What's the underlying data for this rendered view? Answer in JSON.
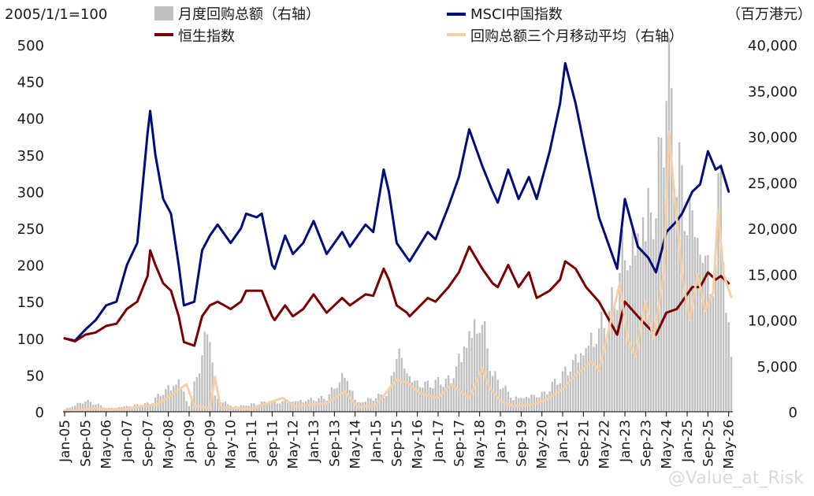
{
  "chart_data": {
    "type": "line",
    "left_axis_label": "2005/1/1=100",
    "right_axis_label": "（百万港元）",
    "left_ylim": [
      0,
      500
    ],
    "left_ticks": [
      "0",
      "50",
      "100",
      "150",
      "200",
      "250",
      "300",
      "350",
      "400",
      "450",
      "500"
    ],
    "right_ylim": [
      0,
      40000
    ],
    "right_ticks": [
      "0",
      "5,000",
      "10,000",
      "15,000",
      "20,000",
      "25,000",
      "30,000",
      "35,000",
      "40,000"
    ],
    "x_ticks": [
      "Jan-05",
      "Sep-05",
      "May-06",
      "Jan-07",
      "Sep-07",
      "May-08",
      "Jan-09",
      "Sep-09",
      "May-10",
      "Jan-11",
      "Sep-11",
      "May-12",
      "Jan-13",
      "Sep-13",
      "May-14",
      "Jan-15",
      "Sep-15",
      "May-16",
      "Jan-17",
      "Sep-17",
      "May-18",
      "Jan-19",
      "Sep-19",
      "May-20",
      "Jan-21",
      "Sep-21",
      "May-22",
      "Jan-23",
      "Sep-23",
      "May-24",
      "Jan-25",
      "Sep-25",
      "May-26"
    ],
    "legend": {
      "bars": "月度回购总额（右轴）",
      "msci": "MSCI中国指数",
      "hsi": "恒生指数",
      "ma": "回购总额三个月移动平均（右轴）"
    },
    "colors": {
      "bars": "#bfbfbf",
      "msci": "#000d7a",
      "hsi": "#7a0000",
      "ma": "#f6cfa6"
    },
    "series": [
      {
        "name": "MSCI中国指数",
        "axis": "left",
        "color": "#000d7a",
        "points": [
          [
            "2005-01",
            100
          ],
          [
            "2005-05",
            97
          ],
          [
            "2005-09",
            112
          ],
          [
            "2006-01",
            125
          ],
          [
            "2006-05",
            145
          ],
          [
            "2006-09",
            150
          ],
          [
            "2007-01",
            200
          ],
          [
            "2007-05",
            230
          ],
          [
            "2007-09",
            380
          ],
          [
            "2007-10",
            410
          ],
          [
            "2007-12",
            350
          ],
          [
            "2008-03",
            290
          ],
          [
            "2008-06",
            270
          ],
          [
            "2008-09",
            200
          ],
          [
            "2008-11",
            145
          ],
          [
            "2009-03",
            150
          ],
          [
            "2009-06",
            220
          ],
          [
            "2009-09",
            240
          ],
          [
            "2009-12",
            255
          ],
          [
            "2010-05",
            230
          ],
          [
            "2010-09",
            250
          ],
          [
            "2010-11",
            270
          ],
          [
            "2011-03",
            265
          ],
          [
            "2011-05",
            270
          ],
          [
            "2011-09",
            200
          ],
          [
            "2011-10",
            195
          ],
          [
            "2012-02",
            240
          ],
          [
            "2012-05",
            215
          ],
          [
            "2012-09",
            230
          ],
          [
            "2013-01",
            260
          ],
          [
            "2013-06",
            215
          ],
          [
            "2013-12",
            245
          ],
          [
            "2014-03",
            225
          ],
          [
            "2014-09",
            255
          ],
          [
            "2014-12",
            245
          ],
          [
            "2015-04",
            330
          ],
          [
            "2015-06",
            300
          ],
          [
            "2015-09",
            230
          ],
          [
            "2016-01",
            210
          ],
          [
            "2016-02",
            205
          ],
          [
            "2016-09",
            245
          ],
          [
            "2016-12",
            235
          ],
          [
            "2017-05",
            280
          ],
          [
            "2017-09",
            320
          ],
          [
            "2018-01",
            385
          ],
          [
            "2018-06",
            335
          ],
          [
            "2018-10",
            300
          ],
          [
            "2018-12",
            285
          ],
          [
            "2019-04",
            330
          ],
          [
            "2019-08",
            290
          ],
          [
            "2019-12",
            320
          ],
          [
            "2020-03",
            290
          ],
          [
            "2020-08",
            355
          ],
          [
            "2020-12",
            420
          ],
          [
            "2021-02",
            475
          ],
          [
            "2021-06",
            420
          ],
          [
            "2021-10",
            350
          ],
          [
            "2022-03",
            265
          ],
          [
            "2022-10",
            195
          ],
          [
            "2023-01",
            290
          ],
          [
            "2023-06",
            225
          ],
          [
            "2023-10",
            210
          ],
          [
            "2024-01",
            190
          ],
          [
            "2024-05",
            245
          ],
          [
            "2024-09",
            260
          ],
          [
            "2024-11",
            270
          ],
          [
            "2025-03",
            300
          ],
          [
            "2025-06",
            310
          ],
          [
            "2025-09",
            355
          ],
          [
            "2025-12",
            330
          ],
          [
            "2026-02",
            335
          ],
          [
            "2026-05",
            300
          ]
        ]
      },
      {
        "name": "恒生指数",
        "axis": "left",
        "color": "#7a0000",
        "points": [
          [
            "2005-01",
            100
          ],
          [
            "2005-05",
            96
          ],
          [
            "2005-09",
            105
          ],
          [
            "2006-01",
            108
          ],
          [
            "2006-05",
            117
          ],
          [
            "2006-09",
            120
          ],
          [
            "2007-01",
            140
          ],
          [
            "2007-05",
            150
          ],
          [
            "2007-09",
            185
          ],
          [
            "2007-10",
            220
          ],
          [
            "2007-12",
            200
          ],
          [
            "2008-03",
            175
          ],
          [
            "2008-06",
            165
          ],
          [
            "2008-09",
            130
          ],
          [
            "2008-11",
            95
          ],
          [
            "2009-03",
            90
          ],
          [
            "2009-06",
            130
          ],
          [
            "2009-09",
            145
          ],
          [
            "2009-12",
            150
          ],
          [
            "2010-05",
            140
          ],
          [
            "2010-09",
            150
          ],
          [
            "2010-11",
            165
          ],
          [
            "2011-03",
            165
          ],
          [
            "2011-05",
            165
          ],
          [
            "2011-09",
            130
          ],
          [
            "2011-10",
            125
          ],
          [
            "2012-02",
            145
          ],
          [
            "2012-05",
            130
          ],
          [
            "2012-09",
            140
          ],
          [
            "2013-01",
            160
          ],
          [
            "2013-06",
            135
          ],
          [
            "2013-12",
            155
          ],
          [
            "2014-03",
            145
          ],
          [
            "2014-09",
            160
          ],
          [
            "2014-12",
            158
          ],
          [
            "2015-04",
            195
          ],
          [
            "2015-06",
            180
          ],
          [
            "2015-09",
            145
          ],
          [
            "2016-01",
            135
          ],
          [
            "2016-02",
            130
          ],
          [
            "2016-09",
            155
          ],
          [
            "2016-12",
            150
          ],
          [
            "2017-05",
            170
          ],
          [
            "2017-09",
            190
          ],
          [
            "2018-01",
            225
          ],
          [
            "2018-06",
            195
          ],
          [
            "2018-10",
            175
          ],
          [
            "2018-12",
            170
          ],
          [
            "2019-04",
            200
          ],
          [
            "2019-08",
            170
          ],
          [
            "2019-12",
            190
          ],
          [
            "2020-03",
            155
          ],
          [
            "2020-08",
            165
          ],
          [
            "2020-12",
            180
          ],
          [
            "2021-02",
            205
          ],
          [
            "2021-06",
            195
          ],
          [
            "2021-10",
            170
          ],
          [
            "2022-03",
            150
          ],
          [
            "2022-10",
            105
          ],
          [
            "2023-01",
            150
          ],
          [
            "2023-06",
            130
          ],
          [
            "2023-10",
            115
          ],
          [
            "2024-01",
            105
          ],
          [
            "2024-05",
            135
          ],
          [
            "2024-09",
            140
          ],
          [
            "2024-11",
            150
          ],
          [
            "2025-03",
            170
          ],
          [
            "2025-06",
            170
          ],
          [
            "2025-09",
            190
          ],
          [
            "2025-12",
            180
          ],
          [
            "2026-02",
            185
          ],
          [
            "2026-05",
            175
          ]
        ]
      },
      {
        "name": "回购总额三个月移动平均（右轴）",
        "axis": "right",
        "color": "#f6cfa6",
        "points": [
          [
            "2005-01",
            0
          ],
          [
            "2006-01",
            400
          ],
          [
            "2006-06",
            200
          ],
          [
            "2007-01",
            300
          ],
          [
            "2007-06",
            600
          ],
          [
            "2008-01",
            800
          ],
          [
            "2008-06",
            1800
          ],
          [
            "2008-12",
            3000
          ],
          [
            "2009-03",
            600
          ],
          [
            "2009-09",
            400
          ],
          [
            "2009-11",
            3800
          ],
          [
            "2010-01",
            500
          ],
          [
            "2011-01",
            300
          ],
          [
            "2012-01",
            1500
          ],
          [
            "2012-06",
            600
          ],
          [
            "2013-01",
            800
          ],
          [
            "2013-06",
            900
          ],
          [
            "2014-01",
            2200
          ],
          [
            "2014-06",
            500
          ],
          [
            "2015-01",
            700
          ],
          [
            "2015-09",
            3500
          ],
          [
            "2016-01",
            3200
          ],
          [
            "2016-06",
            2000
          ],
          [
            "2017-01",
            1500
          ],
          [
            "2017-06",
            3000
          ],
          [
            "2018-01",
            1500
          ],
          [
            "2018-06",
            4700
          ],
          [
            "2018-09",
            2500
          ],
          [
            "2019-01",
            1200
          ],
          [
            "2019-06",
            600
          ],
          [
            "2020-01",
            800
          ],
          [
            "2020-06",
            1200
          ],
          [
            "2021-01",
            2500
          ],
          [
            "2021-06",
            4000
          ],
          [
            "2021-12",
            5500
          ],
          [
            "2022-03",
            4500
          ],
          [
            "2022-06",
            8000
          ],
          [
            "2022-11",
            14000
          ],
          [
            "2023-02",
            8000
          ],
          [
            "2023-05",
            6000
          ],
          [
            "2023-09",
            12000
          ],
          [
            "2023-12",
            8000
          ],
          [
            "2024-04",
            15000
          ],
          [
            "2024-06",
            30500
          ],
          [
            "2024-08",
            24000
          ],
          [
            "2024-11",
            15000
          ],
          [
            "2025-02",
            10000
          ],
          [
            "2025-05",
            15000
          ],
          [
            "2025-08",
            11000
          ],
          [
            "2025-11",
            13000
          ],
          [
            "2026-01",
            22000
          ],
          [
            "2026-03",
            15000
          ],
          [
            "2026-06",
            12500
          ]
        ]
      }
    ],
    "bars_axis": "right",
    "bar_months_start": "2005-01",
    "bar_months_end": "2026-06",
    "bar_anchors": [
      [
        "2005-01",
        300
      ],
      [
        "2005-09",
        1200
      ],
      [
        "2006-06",
        400
      ],
      [
        "2007-03",
        700
      ],
      [
        "2007-10",
        900
      ],
      [
        "2008-03",
        2200
      ],
      [
        "2008-09",
        3500
      ],
      [
        "2009-01",
        700
      ],
      [
        "2009-09",
        9500
      ],
      [
        "2009-11",
        1500
      ],
      [
        "2010-06",
        600
      ],
      [
        "2011-06",
        1000
      ],
      [
        "2012-06",
        1200
      ],
      [
        "2013-06",
        1500
      ],
      [
        "2014-01",
        4200
      ],
      [
        "2014-06",
        1000
      ],
      [
        "2015-06",
        2000
      ],
      [
        "2015-09",
        7000
      ],
      [
        "2016-03",
        3500
      ],
      [
        "2016-09",
        3000
      ],
      [
        "2017-06",
        3500
      ],
      [
        "2018-01",
        9000
      ],
      [
        "2018-06",
        10000
      ],
      [
        "2018-10",
        4000
      ],
      [
        "2019-06",
        1500
      ],
      [
        "2020-06",
        2000
      ],
      [
        "2021-01",
        4000
      ],
      [
        "2021-06",
        6000
      ],
      [
        "2021-12",
        8000
      ],
      [
        "2022-06",
        10000
      ],
      [
        "2022-09",
        12000
      ],
      [
        "2022-12",
        17000
      ],
      [
        "2023-03",
        18000
      ],
      [
        "2023-06",
        20000
      ],
      [
        "2023-09",
        23000
      ],
      [
        "2023-12",
        22000
      ],
      [
        "2024-03",
        28000
      ],
      [
        "2024-05",
        37500
      ],
      [
        "2024-07",
        32000
      ],
      [
        "2024-09",
        27000
      ],
      [
        "2024-12",
        24000
      ],
      [
        "2025-03",
        22000
      ],
      [
        "2025-06",
        19000
      ],
      [
        "2025-09",
        16000
      ],
      [
        "2025-12",
        15000
      ],
      [
        "2026-02",
        30000
      ],
      [
        "2026-04",
        10000
      ],
      [
        "2026-06",
        6500
      ]
    ]
  },
  "watermark": "@Value_at_Risk"
}
